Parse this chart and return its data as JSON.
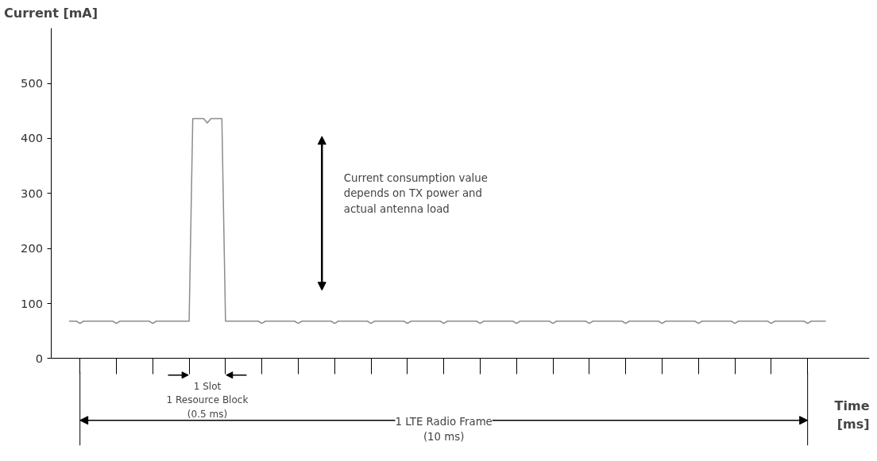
{
  "chart_data": {
    "type": "line",
    "ylabel": "Current [mA]",
    "xlabel": "Time [ms]",
    "categories": [
      null,
      null,
      null,
      null,
      null,
      null,
      null,
      null,
      null,
      null,
      null,
      null,
      null,
      null,
      null,
      null,
      null,
      null,
      null,
      null,
      null,
      null,
      null,
      null,
      null,
      null,
      null,
      null,
      null,
      null,
      null,
      null,
      null,
      null,
      null,
      null,
      null,
      null,
      null,
      null,
      null,
      null,
      null,
      null,
      null,
      null,
      null,
      null,
      null,
      null,
      null,
      null,
      null,
      null,
      null,
      null,
      null,
      null,
      null,
      null,
      null,
      null,
      null,
      null,
      null,
      null,
      null,
      null,
      null,
      null,
      null,
      null,
      null,
      null,
      null,
      null,
      null,
      null,
      null,
      null,
      null,
      null,
      null,
      null,
      null,
      null,
      null,
      null,
      null,
      null,
      null,
      null,
      null,
      null,
      null,
      null,
      null,
      null,
      null,
      null,
      null,
      null,
      null,
      null,
      null,
      null,
      null,
      null,
      null,
      null,
      null,
      null,
      null,
      null,
      null,
      null,
      null,
      null,
      null,
      null,
      null,
      null,
      null,
      null,
      null,
      null,
      null,
      null,
      null,
      null,
      null,
      null,
      null,
      null,
      null,
      null,
      null,
      null,
      null,
      null,
      null,
      null,
      null,
      null,
      null,
      null,
      null,
      null,
      null,
      null,
      null,
      null,
      null,
      null,
      null,
      null,
      null,
      null,
      null,
      null,
      null,
      null,
      null,
      null,
      null,
      null,
      null,
      null,
      null,
      null,
      null,
      null,
      null,
      null,
      null,
      null,
      null,
      null,
      null,
      null,
      null,
      null,
      null,
      null,
      null,
      null,
      null,
      null,
      null,
      null,
      null,
      null,
      null,
      null,
      null,
      null,
      null,
      null,
      null,
      null,
      null,
      null,
      null,
      null,
      null,
      null,
      null,
      null,
      null
    ],
    "series": [
      {
        "color": "#8c8c8c",
        "values": [
          68,
          68,
          68,
          64,
          68,
          68,
          68,
          68,
          68,
          68,
          68,
          68,
          68,
          64,
          68,
          68,
          68,
          68,
          68,
          68,
          68,
          68,
          68,
          64,
          68,
          68,
          68,
          68,
          68,
          68,
          68,
          68,
          68,
          68,
          436,
          436,
          436,
          436,
          428,
          436,
          436,
          436,
          436,
          68,
          68,
          68,
          68,
          68,
          68,
          68,
          68,
          68,
          68,
          64,
          68,
          68,
          68,
          68,
          68,
          68,
          68,
          68,
          68,
          64,
          68,
          68,
          68,
          68,
          68,
          68,
          68,
          68,
          68,
          64,
          68,
          68,
          68,
          68,
          68,
          68,
          68,
          68,
          68,
          64,
          68,
          68,
          68,
          68,
          68,
          68,
          68,
          68,
          68,
          64,
          68,
          68,
          68,
          68,
          68,
          68,
          68,
          68,
          68,
          64,
          68,
          68,
          68,
          68,
          68,
          68,
          68,
          68,
          68,
          64,
          68,
          68,
          68,
          68,
          68,
          68,
          68,
          68,
          68,
          64,
          68,
          68,
          68,
          68,
          68,
          68,
          68,
          68,
          68,
          64,
          68,
          68,
          68,
          68,
          68,
          68,
          68,
          68,
          68,
          64,
          68,
          68,
          68,
          68,
          68,
          68,
          68,
          68,
          68,
          64,
          68,
          68,
          68,
          68,
          68,
          68,
          68,
          68,
          68,
          64,
          68,
          68,
          68,
          68,
          68,
          68,
          68,
          68,
          68,
          64,
          68,
          68,
          68,
          68,
          68,
          68,
          68,
          68,
          68,
          64,
          68,
          68,
          68,
          68,
          68,
          68,
          68,
          68,
          68,
          64,
          68,
          68,
          68,
          68,
          68,
          68,
          68,
          68,
          68,
          64,
          68,
          68,
          68,
          68,
          68
        ]
      }
    ],
    "ylim": [
      0,
      600
    ],
    "yticks": [
      0,
      100,
      200,
      300,
      400,
      500
    ],
    "tick_labels": "y",
    "grid": false,
    "marker": "none",
    "line_style": "solid",
    "annotations": [
      "Current consumption value\ndepends on TX power and\nactual antenna load",
      "1 Slot\n1 Resource Block\n(0.5 ms)",
      "1 LTE Radio Frame\n(10 ms)"
    ]
  }
}
